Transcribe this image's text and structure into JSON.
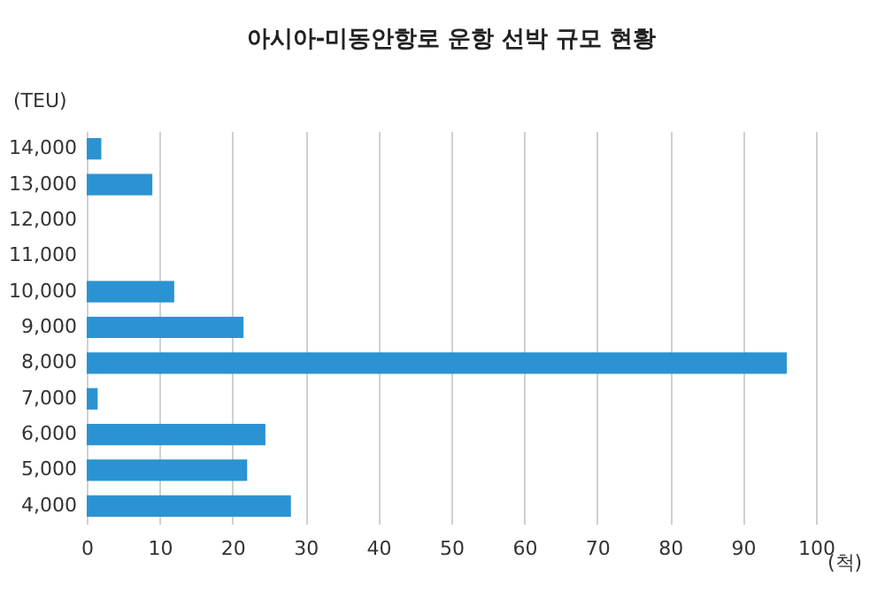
{
  "chart_data": {
    "type": "bar",
    "orientation": "horizontal",
    "title": "아시아-미동안항로 운항 선박 규모 현황",
    "ylabel": "(TEU)",
    "xlabel": "(척)",
    "categories": [
      "14,000",
      "13,000",
      "12,000",
      "11,000",
      "10,000",
      "9,000",
      "8,000",
      "7,000",
      "6,000",
      "5,000",
      "4,000"
    ],
    "values": [
      2,
      9,
      0,
      0,
      12,
      21.5,
      96,
      1.5,
      24.5,
      22,
      28
    ],
    "color": "#2b93d1",
    "xlim": [
      0,
      100
    ],
    "xticks": [
      0,
      10,
      20,
      30,
      40,
      50,
      60,
      70,
      80,
      90,
      100
    ],
    "grid": "x"
  }
}
